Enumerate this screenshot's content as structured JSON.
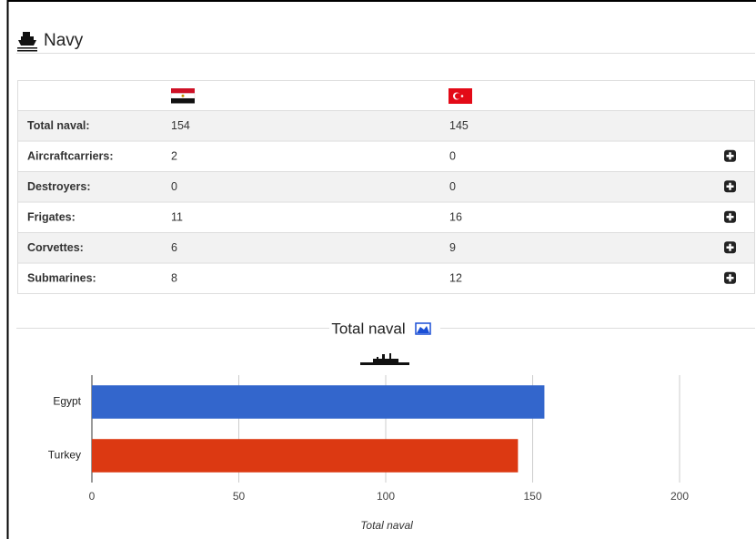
{
  "header": {
    "title": "Navy"
  },
  "table": {
    "rows": [
      [
        "Total naval:",
        154,
        145
      ],
      [
        "Aircraftcarriers:",
        2,
        0
      ],
      [
        "Destroyers:",
        0,
        0
      ],
      [
        "Frigates:",
        11,
        16
      ],
      [
        "Corvettes:",
        6,
        9
      ],
      [
        "Submarines:",
        8,
        12
      ]
    ]
  },
  "chart_data": {
    "type": "bar",
    "orientation": "horizontal",
    "title": "Total naval",
    "x_label": "Total naval",
    "categories": [
      "Egypt",
      "Turkey"
    ],
    "values": [
      154,
      145
    ],
    "colors": [
      "#3366cc",
      "#dc3912"
    ],
    "xlim": [
      0,
      220
    ],
    "xticks": [
      0,
      50,
      100,
      150,
      200
    ],
    "grid": true
  }
}
